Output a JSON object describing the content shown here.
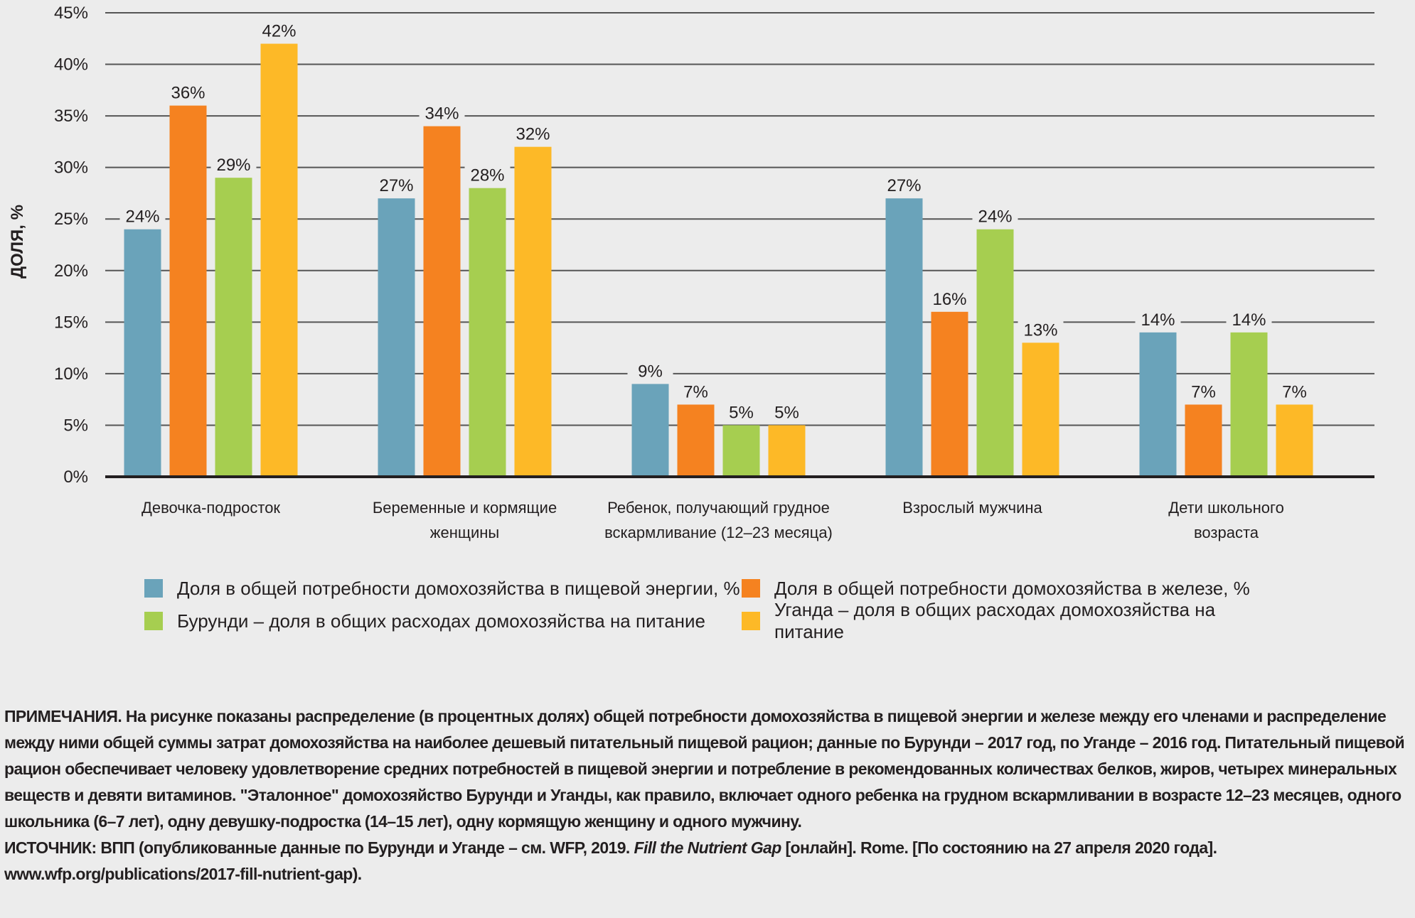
{
  "chart_data": {
    "type": "bar",
    "title": "",
    "xlabel": "",
    "ylabel": "ДОЛЯ, %",
    "ylim": [
      0,
      45
    ],
    "yticks": [
      0,
      5,
      10,
      15,
      20,
      25,
      30,
      35,
      40,
      45
    ],
    "ytick_labels": [
      "0%",
      "5%",
      "10%",
      "15%",
      "20%",
      "25%",
      "30%",
      "35%",
      "40%",
      "45%"
    ],
    "grid": true,
    "legend_position": "bottom",
    "categories": [
      [
        "Девочка-подросток"
      ],
      [
        "Беременные и кормящие",
        "женщины"
      ],
      [
        "Ребенок, получающий грудное",
        "вскармливание (12–23 месяца)"
      ],
      [
        "Взрослый мужчина"
      ],
      [
        "Дети школьного",
        "возраста"
      ]
    ],
    "series": [
      {
        "name": "Доля в общей потребности домохозяйства в пищевой энергии, %",
        "color": "#6aa3ba",
        "values": [
          24,
          27,
          9,
          27,
          14
        ]
      },
      {
        "name": "Доля в общей потребности домохозяйства в железе, %",
        "color": "#f58220",
        "values": [
          36,
          34,
          7,
          16,
          7
        ]
      },
      {
        "name": "Бурунди – доля в общих расходах домохозяйства на питание",
        "color": "#a6ce50",
        "values": [
          29,
          28,
          5,
          24,
          14
        ]
      },
      {
        "name": "Уганда – доля в общих расходах домохозяйства на питание",
        "color": "#fdb927",
        "values": [
          42,
          32,
          5,
          13,
          7
        ]
      }
    ],
    "value_suffix": "%"
  },
  "notes": {
    "label": "ПРИМЕЧАНИЯ.",
    "text": " На рисунке показаны распределение (в процентных долях) общей потребности домохозяйства в пищевой энергии и железе между его членами и распределение между ними общей суммы затрат домохозяйства на наиболее дешевый питательный пищевой рацион; данные по Бурунди – 2017 год, по Уганде – 2016 год. Питательный пищевой рацион обеспечивает человеку удовлетворение средних потребностей в пищевой энергии и потребление в рекомендованных количествах белков, жиров, четырех минеральных веществ и девяти витаминов. \"Эталонное\" домохозяйство Бурунди и Уганды, как правило, включает одного ребенка на грудном вскармливании в возрасте 12–23 месяцев, одного школьника (6–7 лет), одну девушку-подростка (14–15 лет), одну кормящую женщину и одного мужчину."
  },
  "source": {
    "label": "ИСТОЧНИК:",
    "text_before": " ВПП (опубликованные данные по Бурунди и Уганде – см. WFP, 2019. ",
    "title_italic": "Fill the Nutrient Gap",
    "text_after": " [онлайн]. Rome. [По состоянию на 27 апреля 2020 года]. www.wfp.org/publications/2017-fill-nutrient-gap)."
  }
}
